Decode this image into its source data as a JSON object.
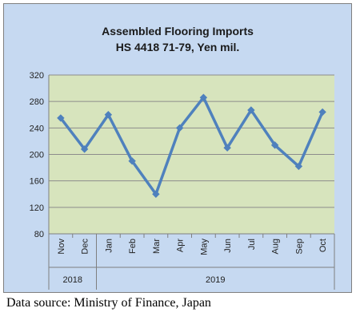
{
  "chart_data": {
    "type": "line",
    "title_lines": [
      "Assembled Flooring Imports",
      "HS 4418 71-79, Yen mil."
    ],
    "categories": [
      "Nov",
      "Dec",
      "Jan",
      "Feb",
      "Mar",
      "Apr",
      "May",
      "Jun",
      "Jul",
      "Aug",
      "Sep",
      "Oct"
    ],
    "year_groups": [
      {
        "label": "2018",
        "start": 0,
        "end": 1
      },
      {
        "label": "2019",
        "start": 2,
        "end": 11
      }
    ],
    "series": [
      {
        "values": [
          255,
          208,
          260,
          190,
          140,
          240,
          286,
          210,
          267,
          214,
          182,
          264
        ]
      }
    ],
    "yticks": [
      80,
      120,
      160,
      200,
      240,
      280,
      320
    ],
    "ylim": [
      80,
      320
    ],
    "grid": true,
    "legend": false,
    "colors": {
      "line": "#4f81bd",
      "plot_bg": "#d7e4bd",
      "chart_bg": "#c6d9f1",
      "grid": "#8c8c8c"
    }
  },
  "source_note": "Data source: Ministry of Finance, Japan"
}
